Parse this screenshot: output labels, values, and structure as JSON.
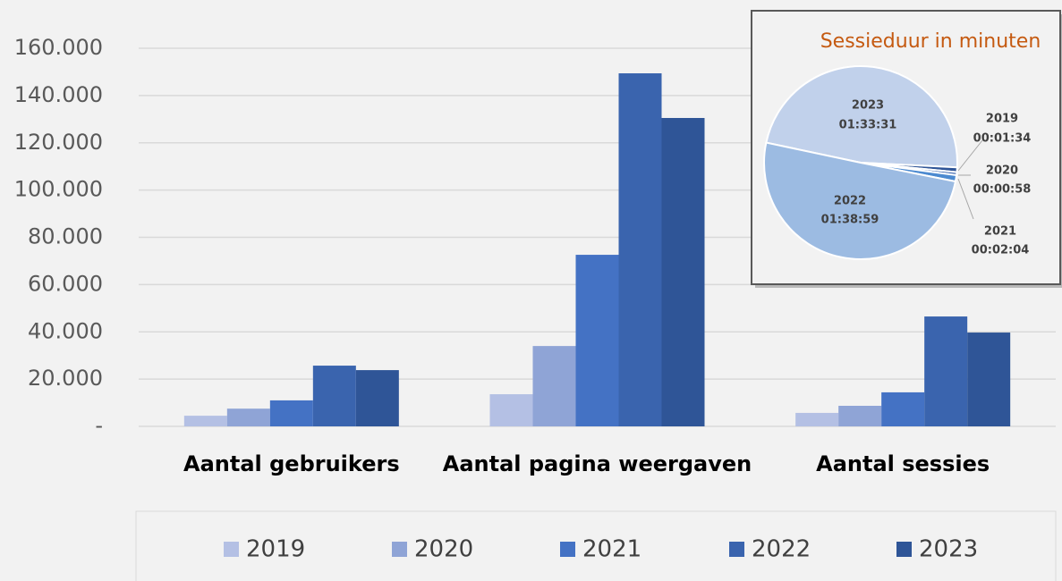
{
  "chart_data": [
    {
      "type": "bar",
      "categories": [
        "Aantal gebruikers",
        "Aantal pagina weergaven",
        "Aantal sessies"
      ],
      "series": [
        {
          "name": "2019",
          "color": "#b4c0e4",
          "values": [
            4500,
            13600,
            5700
          ]
        },
        {
          "name": "2020",
          "color": "#8fa4d6",
          "values": [
            7500,
            34000,
            8700
          ]
        },
        {
          "name": "2021",
          "color": "#4472c4",
          "values": [
            11000,
            72600,
            14400
          ]
        },
        {
          "name": "2022",
          "color": "#3a64ae",
          "values": [
            25700,
            149400,
            46500
          ]
        },
        {
          "name": "2023",
          "color": "#2f5597",
          "values": [
            23800,
            130500,
            39700
          ]
        }
      ],
      "ylim": [
        0,
        160000
      ],
      "yticks": [
        {
          "value": 0,
          "label": "-"
        },
        {
          "value": 20000,
          "label": "20.000"
        },
        {
          "value": 40000,
          "label": "40.000"
        },
        {
          "value": 60000,
          "label": "60.000"
        },
        {
          "value": 80000,
          "label": "80.000"
        },
        {
          "value": 100000,
          "label": "100.000"
        },
        {
          "value": 120000,
          "label": "120.000"
        },
        {
          "value": 140000,
          "label": "140.000"
        },
        {
          "value": 160000,
          "label": "160.000"
        }
      ],
      "grid": true,
      "legend": "bottom"
    },
    {
      "type": "pie",
      "title": "Sessieduur in minuten",
      "categories": [
        "2023",
        "2019",
        "2020",
        "2021",
        "2022"
      ],
      "values": [
        5611,
        94,
        58,
        124,
        5939
      ],
      "value_labels": [
        "01:33:31",
        "00:01:34",
        "00:00:58",
        "00:02:04",
        "01:38:59"
      ],
      "colors": [
        "#c1d1eb",
        "#2f5597",
        "#3a64ae",
        "#4c8ad0",
        "#9cbbe2"
      ]
    }
  ]
}
